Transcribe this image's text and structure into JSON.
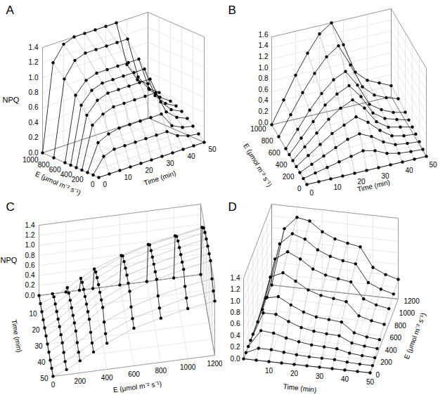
{
  "chart_data": [
    {
      "type": "waterfall3d",
      "title": "A",
      "color": "#000000",
      "marker": "circle",
      "line_style": "solid",
      "xlabel": "Time (min)",
      "ylabel": "E (μmol m⁻² s⁻¹)",
      "zlabel": "NPQ",
      "x": [
        0,
        5,
        10,
        15,
        20,
        25,
        30,
        35,
        40,
        45,
        50
      ],
      "xlim": [
        0,
        50
      ],
      "xticks": [
        0,
        10,
        20,
        30,
        40,
        50
      ],
      "y": [
        0,
        100,
        200,
        300,
        400,
        500,
        600,
        800,
        1000
      ],
      "ylim": [
        0,
        1000
      ],
      "yticks": [
        0,
        200,
        400,
        600,
        800,
        1000
      ],
      "zlim": [
        0,
        1.4
      ],
      "zticks": [
        {
          "value": 0,
          "label": "0.0"
        },
        {
          "value": 0.2,
          "label": "0.2"
        },
        {
          "value": 0.4,
          "label": "0.4"
        },
        {
          "value": 0.6,
          "label": "0.6"
        },
        {
          "value": 0.8,
          "label": "0.8"
        },
        {
          "value": 1.0,
          "label": "1.0"
        },
        {
          "value": 1.2,
          "label": "1.2"
        },
        {
          "value": 1.4,
          "label": "1.4"
        }
      ],
      "values": [
        [
          0,
          0,
          0,
          0,
          0,
          0,
          0,
          0,
          0,
          0,
          0
        ],
        [
          0,
          0.2,
          0.25,
          0.25,
          0.25,
          0.25,
          0.25,
          0.25,
          0.15,
          0.1,
          0.08
        ],
        [
          0,
          0.35,
          0.42,
          0.45,
          0.45,
          0.45,
          0.45,
          0.45,
          0.25,
          0.18,
          0.15
        ],
        [
          0,
          0.55,
          0.65,
          0.7,
          0.7,
          0.7,
          0.7,
          0.7,
          0.4,
          0.28,
          0.22
        ],
        [
          0,
          0.65,
          0.8,
          0.85,
          0.85,
          0.85,
          0.85,
          0.85,
          0.5,
          0.35,
          0.28
        ],
        [
          0,
          0.75,
          0.9,
          0.95,
          0.95,
          0.95,
          0.95,
          0.95,
          0.55,
          0.4,
          0.32
        ],
        [
          0,
          0.85,
          1.0,
          1.05,
          1.05,
          1.05,
          1.05,
          1.05,
          0.6,
          0.45,
          0.35
        ],
        [
          0,
          1.0,
          1.2,
          1.25,
          1.25,
          1.25,
          1.25,
          1.25,
          0.7,
          0.5,
          0.4
        ],
        [
          0,
          1.15,
          1.35,
          1.4,
          1.4,
          1.4,
          1.4,
          1.4,
          0.8,
          0.55,
          0.45
        ]
      ]
    },
    {
      "type": "waterfall3d",
      "title": "B",
      "color": "#000000",
      "marker": "circle",
      "line_style": "solid",
      "xlabel": "Time (min)",
      "ylabel": "E (μmol m⁻² s⁻¹)",
      "x": [
        0,
        5,
        10,
        15,
        20,
        25,
        30,
        35,
        40,
        45,
        50
      ],
      "xlim": [
        0,
        50
      ],
      "xticks": [
        0,
        10,
        20,
        30,
        40,
        50
      ],
      "y": [
        0,
        100,
        200,
        300,
        400,
        500,
        600,
        800,
        1000
      ],
      "ylim": [
        0,
        1000
      ],
      "yticks": [
        0,
        200,
        400,
        600,
        800,
        1000
      ],
      "zlim": [
        0,
        1.6
      ],
      "zticks": [
        {
          "value": 0,
          "label": "0.0"
        },
        {
          "value": 0.2,
          "label": "0.2"
        },
        {
          "value": 0.4,
          "label": "0.4"
        },
        {
          "value": 0.6,
          "label": "0.6"
        },
        {
          "value": 0.8,
          "label": "0.8"
        },
        {
          "value": 1.0,
          "label": "1.0"
        },
        {
          "value": 1.2,
          "label": "1.2"
        },
        {
          "value": 1.4,
          "label": "1.4"
        },
        {
          "value": 1.6,
          "label": "1.6"
        }
      ],
      "values": [
        [
          0,
          0,
          0,
          0,
          0,
          0,
          0,
          0,
          0,
          0,
          0
        ],
        [
          0,
          0.05,
          0.1,
          0.15,
          0.2,
          0.25,
          0.2,
          0.1,
          0.05,
          0.03,
          0.02
        ],
        [
          0,
          0.1,
          0.2,
          0.3,
          0.4,
          0.45,
          0.35,
          0.2,
          0.1,
          0.07,
          0.05
        ],
        [
          0,
          0.15,
          0.3,
          0.45,
          0.55,
          0.65,
          0.5,
          0.3,
          0.15,
          0.1,
          0.08
        ],
        [
          0,
          0.2,
          0.4,
          0.6,
          0.75,
          0.85,
          0.65,
          0.35,
          0.2,
          0.15,
          0.1
        ],
        [
          0,
          0.25,
          0.5,
          0.75,
          0.9,
          1.0,
          0.75,
          0.4,
          0.25,
          0.18,
          0.12
        ],
        [
          0,
          0.3,
          0.6,
          0.85,
          1.05,
          1.15,
          0.85,
          0.45,
          0.3,
          0.2,
          0.15
        ],
        [
          0,
          0.35,
          0.7,
          1.0,
          1.25,
          1.4,
          1.0,
          0.55,
          0.35,
          0.25,
          0.18
        ],
        [
          0,
          0.4,
          0.8,
          1.15,
          1.45,
          1.6,
          1.15,
          0.6,
          0.4,
          0.3,
          0.2
        ]
      ]
    },
    {
      "type": "waterfall3d",
      "title": "C",
      "color": "#000000",
      "marker": "circle",
      "line_style": "solid",
      "xlabel": "Time (min)",
      "ylabel": "E (μmol m⁻² s⁻¹)",
      "zlabel": "NPQ",
      "x": [
        0,
        5,
        10,
        15,
        20,
        25,
        30,
        35,
        40,
        45,
        50
      ],
      "xlim": [
        0,
        50
      ],
      "xticks": [
        10,
        20,
        30,
        40,
        50
      ],
      "y": [
        0,
        100,
        200,
        300,
        400,
        600,
        800,
        1000,
        1200
      ],
      "ylim": [
        0,
        1200
      ],
      "yticks": [
        0,
        200,
        400,
        600,
        800,
        1000,
        1200
      ],
      "zlim": [
        0,
        1.4
      ],
      "zticks": [
        {
          "value": 0,
          "label": "0.0"
        },
        {
          "value": 0.2,
          "label": "0.2"
        },
        {
          "value": 0.4,
          "label": "0.4"
        },
        {
          "value": 0.6,
          "label": "0.6"
        },
        {
          "value": 0.8,
          "label": "0.8"
        },
        {
          "value": 1.0,
          "label": "1.0"
        },
        {
          "value": 1.2,
          "label": "1.2"
        },
        {
          "value": 1.4,
          "label": "1.4"
        }
      ],
      "values": [
        [
          0,
          0,
          0,
          0,
          0,
          0,
          0,
          0,
          0,
          0,
          0
        ],
        [
          0,
          0.1,
          0.12,
          0.13,
          0.14,
          0.15,
          0.15,
          0.15,
          0.12,
          0.1,
          0.1
        ],
        [
          0,
          0.25,
          0.3,
          0.32,
          0.33,
          0.34,
          0.35,
          0.35,
          0.28,
          0.25,
          0.24
        ],
        [
          0,
          0.4,
          0.48,
          0.5,
          0.52,
          0.53,
          0.54,
          0.55,
          0.45,
          0.4,
          0.38
        ],
        [
          0,
          0.55,
          0.65,
          0.7,
          0.72,
          0.73,
          0.74,
          0.75,
          0.62,
          0.55,
          0.52
        ],
        [
          0,
          0.75,
          0.9,
          0.95,
          0.98,
          1.0,
          1.0,
          1.0,
          0.85,
          0.78,
          0.75
        ],
        [
          0,
          0.9,
          1.05,
          1.1,
          1.13,
          1.15,
          1.16,
          1.17,
          1.0,
          0.92,
          0.88
        ],
        [
          0,
          1.0,
          1.15,
          1.22,
          1.25,
          1.27,
          1.28,
          1.3,
          1.12,
          1.05,
          1.0
        ],
        [
          0,
          1.1,
          1.25,
          1.32,
          1.35,
          1.37,
          1.38,
          1.4,
          1.2,
          1.12,
          1.08
        ]
      ]
    },
    {
      "type": "waterfall3d",
      "title": "D",
      "color": "#000000",
      "marker": "circle",
      "line_style": "solid",
      "xlabel": "Time (min)",
      "ylabel": "E (μmol m⁻² s⁻¹)",
      "x": [
        0,
        5,
        10,
        15,
        20,
        25,
        30,
        35,
        40,
        45,
        50
      ],
      "xlim": [
        0,
        50
      ],
      "xticks": [
        10,
        20,
        30,
        40,
        50
      ],
      "y": [
        0,
        100,
        200,
        300,
        400,
        600,
        800,
        1000,
        1200
      ],
      "ylim": [
        0,
        1200
      ],
      "yticks": [
        0,
        200,
        400,
        600,
        800,
        1000,
        1200
      ],
      "zlim": [
        0,
        1.4
      ],
      "zticks": [
        {
          "value": 0,
          "label": "0.0"
        },
        {
          "value": 0.2,
          "label": "0.2"
        },
        {
          "value": 0.4,
          "label": "0.4"
        },
        {
          "value": 0.6,
          "label": "0.6"
        },
        {
          "value": 0.8,
          "label": "0.8"
        },
        {
          "value": 1.0,
          "label": "1.0"
        },
        {
          "value": 1.2,
          "label": "1.2"
        },
        {
          "value": 1.4,
          "label": "1.4"
        }
      ],
      "values": [
        [
          0,
          0,
          0,
          0,
          0,
          0,
          0,
          0,
          0,
          0,
          0
        ],
        [
          0,
          0.1,
          0.1,
          0.08,
          0.06,
          0.05,
          0.05,
          0.05,
          0.03,
          0.02,
          0.02
        ],
        [
          0,
          0.3,
          0.28,
          0.22,
          0.18,
          0.15,
          0.14,
          0.13,
          0.08,
          0.06,
          0.05
        ],
        [
          0,
          0.5,
          0.5,
          0.4,
          0.32,
          0.28,
          0.26,
          0.25,
          0.15,
          0.12,
          0.1
        ],
        [
          0,
          0.65,
          0.7,
          0.58,
          0.48,
          0.42,
          0.4,
          0.38,
          0.22,
          0.17,
          0.15
        ],
        [
          0,
          0.8,
          0.9,
          0.78,
          0.65,
          0.58,
          0.55,
          0.52,
          0.3,
          0.24,
          0.2
        ],
        [
          0,
          0.9,
          1.05,
          0.95,
          0.8,
          0.72,
          0.68,
          0.65,
          0.38,
          0.3,
          0.26
        ],
        [
          0,
          0.95,
          1.15,
          1.08,
          0.92,
          0.83,
          0.78,
          0.75,
          0.45,
          0.36,
          0.3
        ],
        [
          0,
          1.0,
          1.22,
          1.18,
          1.02,
          0.92,
          0.87,
          0.83,
          0.5,
          0.4,
          0.34
        ]
      ]
    }
  ]
}
